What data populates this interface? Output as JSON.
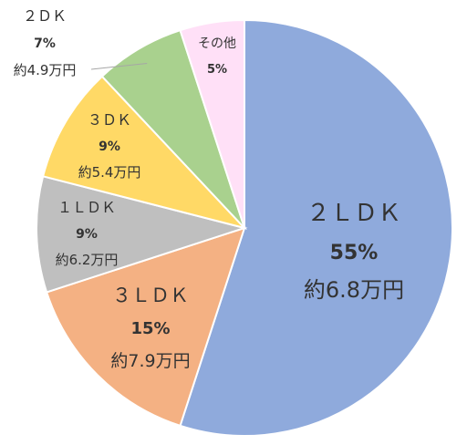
{
  "chart_data": {
    "type": "pie",
    "title": "",
    "start_angle_deg": 0,
    "direction": "clockwise",
    "slices": [
      {
        "label": "２ＬＤＫ",
        "percent": "55%",
        "value_text": "約6.8万円",
        "value": 55,
        "color": "#8faadc"
      },
      {
        "label": "３ＬＤＫ",
        "percent": "15%",
        "value_text": "約7.9万円",
        "value": 15,
        "color": "#f4b183"
      },
      {
        "label": "１ＬＤＫ",
        "percent": "9%",
        "value_text": "約6.2万円",
        "value": 9,
        "color": "#bfbfbf"
      },
      {
        "label": "３ＤＫ",
        "percent": "9%",
        "value_text": "約5.4万円",
        "value": 9,
        "color": "#ffd966"
      },
      {
        "label": "２ＤＫ",
        "percent": "7%",
        "value_text": "約4.9万円",
        "value": 7,
        "color": "#a9d18e"
      },
      {
        "label": "その他",
        "percent": "5%",
        "value_text": "",
        "value": 5,
        "color": "#ffe0f7"
      }
    ]
  }
}
